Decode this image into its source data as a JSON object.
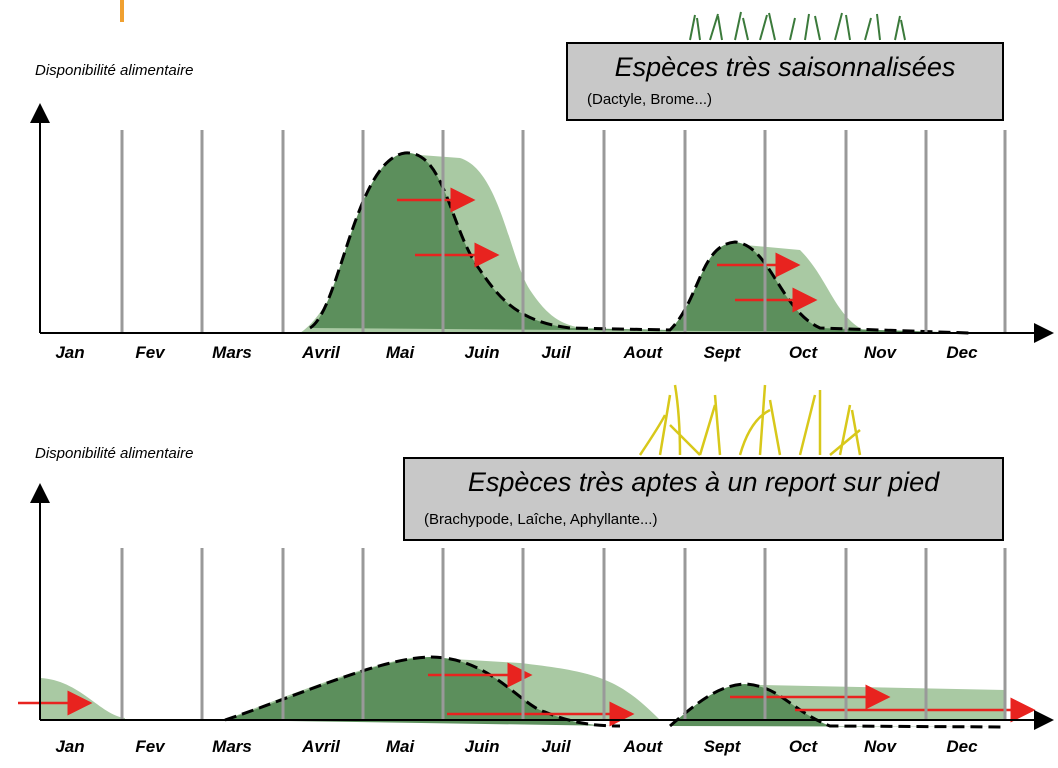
{
  "panels": [
    {
      "y_label": "Disponibilité alimentaire",
      "title": "Espèces très saisonnalisées",
      "subtitle": "(Dactyle, Brome...)",
      "months": [
        "Jan",
        "Fev",
        "Mars",
        "Avril",
        "Mai",
        "Juin",
        "Juil",
        "Aout",
        "Sept",
        "Oct",
        "Nov",
        "Dec"
      ]
    },
    {
      "y_label": "Disponibilité alimentaire",
      "title": "Espèces très aptes à un report sur pied",
      "subtitle": "(Brachypode, Laîche, Aphyllante...)",
      "months": [
        "Jan",
        "Fev",
        "Mars",
        "Avril",
        "Mai",
        "Juin",
        "Juil",
        "Aout",
        "Sept",
        "Oct",
        "Nov",
        "Dec"
      ]
    }
  ]
}
